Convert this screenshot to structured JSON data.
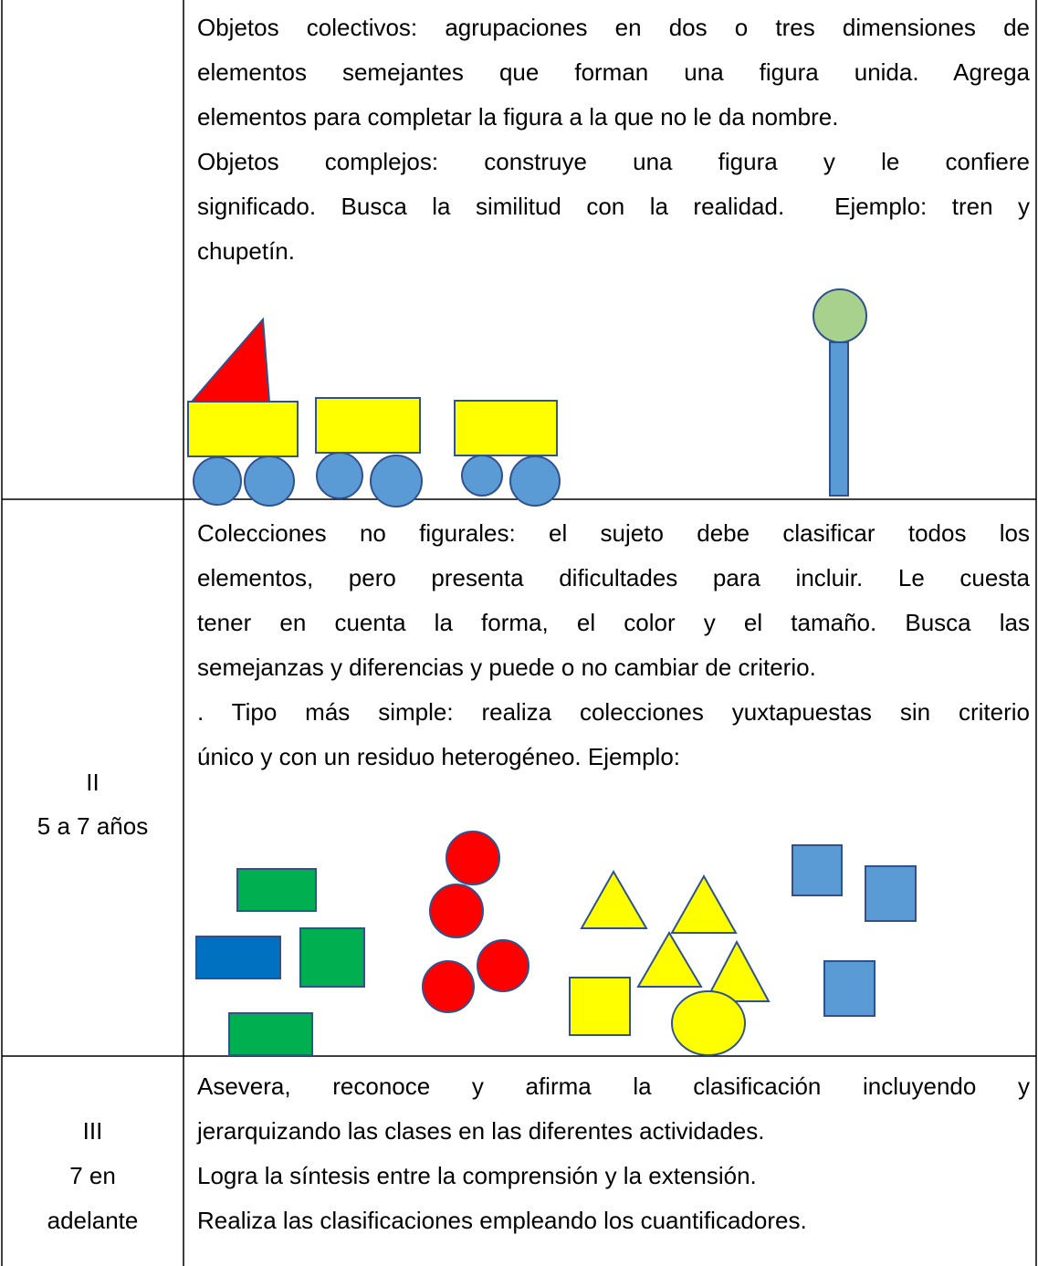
{
  "rows": [
    {
      "paragraphs": [
        [
          "Objetos colectivos: agrupaciones en dos o tres dimensiones de",
          "elementos semejantes que forman una figura unida. Agrega",
          "elementos para completar la figura a la que no le da nombre."
        ],
        [
          "Objetos complejos: construye una figura y le confiere",
          "significado. Busca la similitud con la realidad.  Ejemplo: tren y",
          "chupetín."
        ]
      ]
    },
    {
      "stage": [
        "II",
        "5 a 7 años"
      ],
      "paragraphs": [
        [
          "Colecciones no figurales: el sujeto debe clasificar todos los",
          "elementos, pero presenta dificultades para incluir. Le cuesta",
          "tener en cuenta la forma, el color y el tamaño. Busca las",
          "semejanzas y diferencias y puede o no cambiar de criterio."
        ],
        [
          ". Tipo más simple: realiza colecciones yuxtapuestas sin criterio",
          "único y con un residuo heterogéneo. Ejemplo:"
        ]
      ]
    },
    {
      "stage": [
        "III",
        "7 en",
        "adelante"
      ],
      "paragraphs": [
        [
          "Asevera, reconoce y afirma la clasificación incluyendo y",
          "jerarquizando las clases en las diferentes actividades."
        ],
        [
          "Logra la síntesis entre la comprensión y la extensión."
        ],
        [
          "Realiza las clasificaciones empleando los cuantificadores."
        ]
      ]
    }
  ]
}
